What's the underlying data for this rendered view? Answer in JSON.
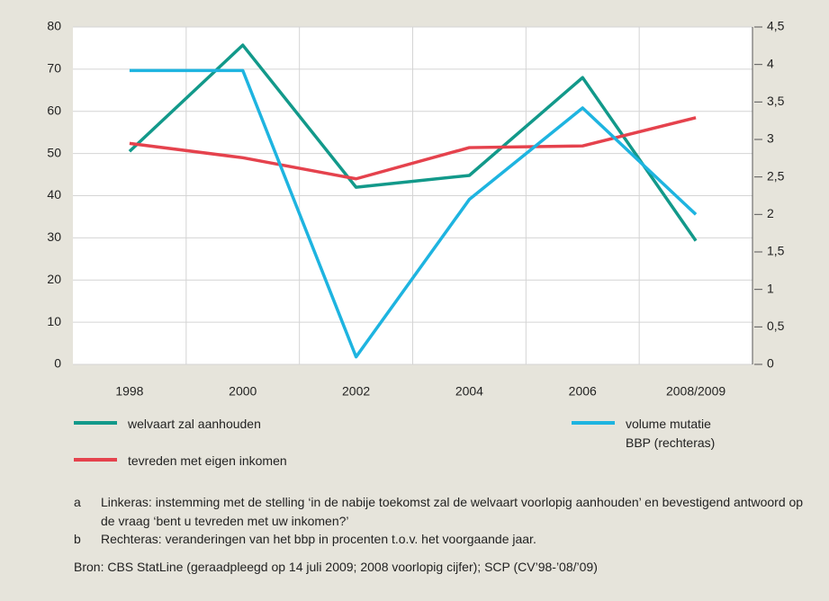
{
  "chart_data": {
    "type": "line",
    "categories": [
      "1998",
      "2000",
      "2002",
      "2004",
      "2006",
      "2008/2009"
    ],
    "series": [
      {
        "name": "welvaart zal aanhouden",
        "color": "#12998a",
        "values": [
          50.5,
          75.7,
          42,
          44.8,
          68,
          29.3
        ]
      },
      {
        "name": "tevreden met eigen inkomen",
        "color": "#e5424d",
        "values": [
          52.4,
          49,
          44,
          51.4,
          51.8,
          58.5
        ]
      },
      {
        "name": "volume mutatie BBP (rechteras)",
        "color": "#1eb4e0",
        "axis": "y2",
        "values": [
          3.92,
          3.92,
          0.1,
          2.2,
          3.42,
          2.0
        ]
      }
    ],
    "ylim": [
      0,
      80
    ],
    "yticks": [
      0,
      10,
      20,
      30,
      40,
      50,
      60,
      70,
      80
    ],
    "y2lim": [
      0,
      4.5
    ],
    "y2ticks": [
      0,
      {
        "value": 0.5,
        "label": "0,5"
      },
      1,
      {
        "value": 1.5,
        "label": "1,5"
      },
      2,
      {
        "value": 2.5,
        "label": "2,5"
      },
      3,
      {
        "value": 3.5,
        "label": "3,5"
      },
      4,
      {
        "value": 4.5,
        "label": "4,5"
      }
    ],
    "grid": true,
    "notes": [
      {
        "marker": "a",
        "text": "Linkeras: instemming met de stelling ‘in de nabije toekomst zal de welvaart voorlopig aanhouden’ en bevestigend antwoord op de vraag ‘bent u tevreden met uw inkomen?’"
      },
      {
        "marker": "b",
        "text": "Rechteras: veranderingen van het bbp in procenten t.o.v. het voorgaande jaar."
      }
    ],
    "source": "Bron: CBS StatLine (geraadpleegd op 14 juli 2009; 2008 voorlopig cijfer); SCP (CV’98-’08/’09)"
  }
}
